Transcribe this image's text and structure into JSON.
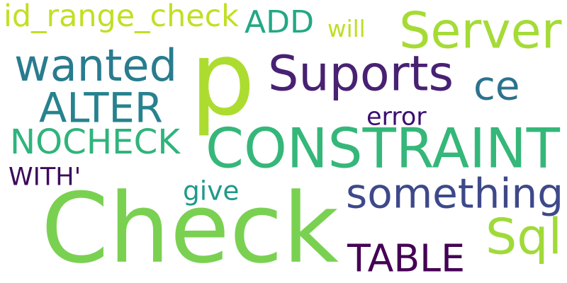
{
  "words": [
    {
      "text": "p",
      "color": "#addc30"
    },
    {
      "text": "Check",
      "color": "#7ad151"
    },
    {
      "text": "CONSTRAINT",
      "color": "#35b779"
    },
    {
      "text": "NOCHECK",
      "color": "#2fb47c"
    },
    {
      "text": "Suports",
      "color": "#482173"
    },
    {
      "text": "ALTER",
      "color": "#26828e"
    },
    {
      "text": "wanted",
      "color": "#287c8e"
    },
    {
      "text": "Server",
      "color": "#a5db36"
    },
    {
      "text": "something",
      "color": "#3e4989"
    },
    {
      "text": "ADD",
      "color": "#22a884"
    },
    {
      "text": "TABLE",
      "color": "#440154"
    },
    {
      "text": "Sql",
      "color": "#a0da39"
    },
    {
      "text": "ce",
      "color": "#2c728e"
    },
    {
      "text": "id_range_check",
      "color": "#c2df23"
    },
    {
      "text": "error",
      "color": "#3b0f70"
    },
    {
      "text": "WITH'",
      "color": "#3c0a5a"
    },
    {
      "text": "give",
      "color": "#1f9a8a"
    },
    {
      "text": "will",
      "color": "#bddf26"
    }
  ]
}
